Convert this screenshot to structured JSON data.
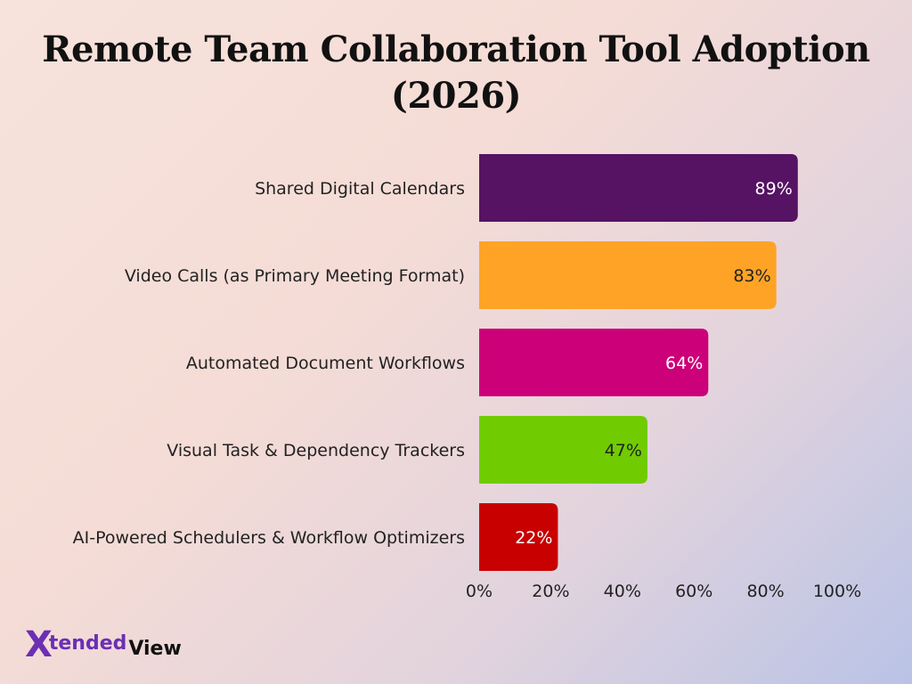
{
  "chart_data": {
    "type": "bar",
    "orientation": "horizontal",
    "title": "Remote Team Collaboration Tool Adoption (2026)",
    "categories": [
      "Shared Digital Calendars",
      "Video Calls (as Primary Meeting Format)",
      "Automated Document Workflows",
      "Visual Task & Dependency Trackers",
      "AI-Powered Schedulers & Workflow Optimizers"
    ],
    "values": [
      89,
      83,
      64,
      47,
      22
    ],
    "value_labels": [
      "89%",
      "83%",
      "64%",
      "47%",
      "22%"
    ],
    "colors": [
      "#561263",
      "#ffa326",
      "#cc0078",
      "#70cc00",
      "#c80000"
    ],
    "value_label_colors": [
      "#ffffff",
      "#222222",
      "#ffffff",
      "#222222",
      "#ffffff"
    ],
    "xlim": [
      0,
      100
    ],
    "x_ticks": [
      0,
      20,
      40,
      60,
      80,
      100
    ],
    "x_tick_labels": [
      "0%",
      "20%",
      "40%",
      "60%",
      "80%",
      "100%"
    ],
    "xlabel": "",
    "ylabel": "",
    "grid": false,
    "legend": "none"
  },
  "logo": {
    "x": "X",
    "tended": "tended",
    "view": "View"
  }
}
